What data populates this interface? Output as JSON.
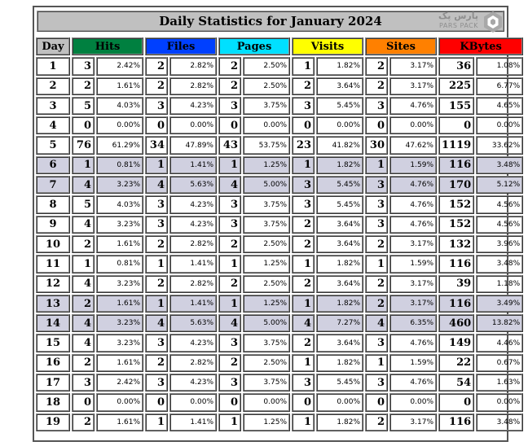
{
  "title": "Daily Statistics for January 2024",
  "logo": {
    "line1": "پارس پک",
    "line2": "PARS PACK"
  },
  "colors": {
    "hits": "#008040",
    "files": "#0040ff",
    "pages": "#00e0ff",
    "visits": "#ffff00",
    "sites": "#ff8000",
    "kbytes": "#ff0000",
    "weekend_row": "#d0d0e0"
  },
  "headers": {
    "day": "Day",
    "hits": "Hits",
    "files": "Files",
    "pages": "Pages",
    "visits": "Visits",
    "sites": "Sites",
    "kbytes": "KBytes"
  },
  "rows": [
    {
      "day": "1",
      "hits": "3",
      "hits_pct": "2.42%",
      "files": "2",
      "files_pct": "2.82%",
      "pages": "2",
      "pages_pct": "2.50%",
      "visits": "1",
      "visits_pct": "1.82%",
      "sites": "2",
      "sites_pct": "3.17%",
      "kbytes": "36",
      "kbytes_pct": "1.08%",
      "weekend": false
    },
    {
      "day": "2",
      "hits": "2",
      "hits_pct": "1.61%",
      "files": "2",
      "files_pct": "2.82%",
      "pages": "2",
      "pages_pct": "2.50%",
      "visits": "2",
      "visits_pct": "3.64%",
      "sites": "2",
      "sites_pct": "3.17%",
      "kbytes": "225",
      "kbytes_pct": "6.77%",
      "weekend": false
    },
    {
      "day": "3",
      "hits": "5",
      "hits_pct": "4.03%",
      "files": "3",
      "files_pct": "4.23%",
      "pages": "3",
      "pages_pct": "3.75%",
      "visits": "3",
      "visits_pct": "5.45%",
      "sites": "3",
      "sites_pct": "4.76%",
      "kbytes": "155",
      "kbytes_pct": "4.65%",
      "weekend": false
    },
    {
      "day": "4",
      "hits": "0",
      "hits_pct": "0.00%",
      "files": "0",
      "files_pct": "0.00%",
      "pages": "0",
      "pages_pct": "0.00%",
      "visits": "0",
      "visits_pct": "0.00%",
      "sites": "0",
      "sites_pct": "0.00%",
      "kbytes": "0",
      "kbytes_pct": "0.00%",
      "weekend": false
    },
    {
      "day": "5",
      "hits": "76",
      "hits_pct": "61.29%",
      "files": "34",
      "files_pct": "47.89%",
      "pages": "43",
      "pages_pct": "53.75%",
      "visits": "23",
      "visits_pct": "41.82%",
      "sites": "30",
      "sites_pct": "47.62%",
      "kbytes": "1119",
      "kbytes_pct": "33.62%",
      "weekend": false
    },
    {
      "day": "6",
      "hits": "1",
      "hits_pct": "0.81%",
      "files": "1",
      "files_pct": "1.41%",
      "pages": "1",
      "pages_pct": "1.25%",
      "visits": "1",
      "visits_pct": "1.82%",
      "sites": "1",
      "sites_pct": "1.59%",
      "kbytes": "116",
      "kbytes_pct": "3.48%",
      "weekend": true
    },
    {
      "day": "7",
      "hits": "4",
      "hits_pct": "3.23%",
      "files": "4",
      "files_pct": "5.63%",
      "pages": "4",
      "pages_pct": "5.00%",
      "visits": "3",
      "visits_pct": "5.45%",
      "sites": "3",
      "sites_pct": "4.76%",
      "kbytes": "170",
      "kbytes_pct": "5.12%",
      "weekend": true
    },
    {
      "day": "8",
      "hits": "5",
      "hits_pct": "4.03%",
      "files": "3",
      "files_pct": "4.23%",
      "pages": "3",
      "pages_pct": "3.75%",
      "visits": "3",
      "visits_pct": "5.45%",
      "sites": "3",
      "sites_pct": "4.76%",
      "kbytes": "152",
      "kbytes_pct": "4.56%",
      "weekend": false
    },
    {
      "day": "9",
      "hits": "4",
      "hits_pct": "3.23%",
      "files": "3",
      "files_pct": "4.23%",
      "pages": "3",
      "pages_pct": "3.75%",
      "visits": "2",
      "visits_pct": "3.64%",
      "sites": "3",
      "sites_pct": "4.76%",
      "kbytes": "152",
      "kbytes_pct": "4.56%",
      "weekend": false
    },
    {
      "day": "10",
      "hits": "2",
      "hits_pct": "1.61%",
      "files": "2",
      "files_pct": "2.82%",
      "pages": "2",
      "pages_pct": "2.50%",
      "visits": "2",
      "visits_pct": "3.64%",
      "sites": "2",
      "sites_pct": "3.17%",
      "kbytes": "132",
      "kbytes_pct": "3.96%",
      "weekend": false
    },
    {
      "day": "11",
      "hits": "1",
      "hits_pct": "0.81%",
      "files": "1",
      "files_pct": "1.41%",
      "pages": "1",
      "pages_pct": "1.25%",
      "visits": "1",
      "visits_pct": "1.82%",
      "sites": "1",
      "sites_pct": "1.59%",
      "kbytes": "116",
      "kbytes_pct": "3.48%",
      "weekend": false
    },
    {
      "day": "12",
      "hits": "4",
      "hits_pct": "3.23%",
      "files": "2",
      "files_pct": "2.82%",
      "pages": "2",
      "pages_pct": "2.50%",
      "visits": "2",
      "visits_pct": "3.64%",
      "sites": "2",
      "sites_pct": "3.17%",
      "kbytes": "39",
      "kbytes_pct": "1.18%",
      "weekend": false
    },
    {
      "day": "13",
      "hits": "2",
      "hits_pct": "1.61%",
      "files": "1",
      "files_pct": "1.41%",
      "pages": "1",
      "pages_pct": "1.25%",
      "visits": "1",
      "visits_pct": "1.82%",
      "sites": "2",
      "sites_pct": "3.17%",
      "kbytes": "116",
      "kbytes_pct": "3.49%",
      "weekend": true
    },
    {
      "day": "14",
      "hits": "4",
      "hits_pct": "3.23%",
      "files": "4",
      "files_pct": "5.63%",
      "pages": "4",
      "pages_pct": "5.00%",
      "visits": "4",
      "visits_pct": "7.27%",
      "sites": "4",
      "sites_pct": "6.35%",
      "kbytes": "460",
      "kbytes_pct": "13.82%",
      "weekend": true
    },
    {
      "day": "15",
      "hits": "4",
      "hits_pct": "3.23%",
      "files": "3",
      "files_pct": "4.23%",
      "pages": "3",
      "pages_pct": "3.75%",
      "visits": "2",
      "visits_pct": "3.64%",
      "sites": "3",
      "sites_pct": "4.76%",
      "kbytes": "149",
      "kbytes_pct": "4.46%",
      "weekend": false
    },
    {
      "day": "16",
      "hits": "2",
      "hits_pct": "1.61%",
      "files": "2",
      "files_pct": "2.82%",
      "pages": "2",
      "pages_pct": "2.50%",
      "visits": "1",
      "visits_pct": "1.82%",
      "sites": "1",
      "sites_pct": "1.59%",
      "kbytes": "22",
      "kbytes_pct": "0.67%",
      "weekend": false
    },
    {
      "day": "17",
      "hits": "3",
      "hits_pct": "2.42%",
      "files": "3",
      "files_pct": "4.23%",
      "pages": "3",
      "pages_pct": "3.75%",
      "visits": "3",
      "visits_pct": "5.45%",
      "sites": "3",
      "sites_pct": "4.76%",
      "kbytes": "54",
      "kbytes_pct": "1.63%",
      "weekend": false
    },
    {
      "day": "18",
      "hits": "0",
      "hits_pct": "0.00%",
      "files": "0",
      "files_pct": "0.00%",
      "pages": "0",
      "pages_pct": "0.00%",
      "visits": "0",
      "visits_pct": "0.00%",
      "sites": "0",
      "sites_pct": "0.00%",
      "kbytes": "0",
      "kbytes_pct": "0.00%",
      "weekend": false
    },
    {
      "day": "19",
      "hits": "2",
      "hits_pct": "1.61%",
      "files": "1",
      "files_pct": "1.41%",
      "pages": "1",
      "pages_pct": "1.25%",
      "visits": "1",
      "visits_pct": "1.82%",
      "sites": "2",
      "sites_pct": "3.17%",
      "kbytes": "116",
      "kbytes_pct": "3.48%",
      "weekend": false
    }
  ]
}
